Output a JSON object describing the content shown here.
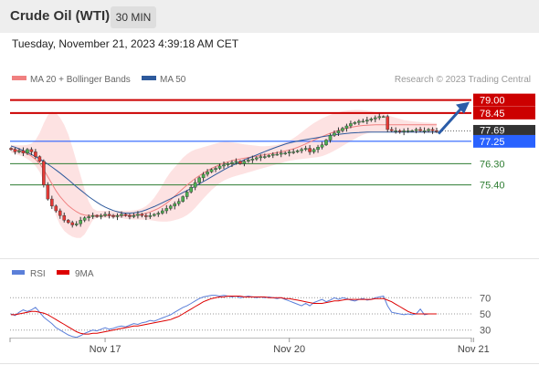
{
  "header": {
    "title": "Crude Oil (WTI)",
    "timeframe": "30 MIN"
  },
  "timestamp": "Tuesday, November 21, 2023 4:39:18 AM CET",
  "legend": {
    "bb_label": "MA 20 + Bollinger Bands",
    "ma50_label": "MA 50",
    "credit": "Research © 2023 Trading Central"
  },
  "rsi_legend": {
    "rsi_label": "RSI",
    "ma9_label": "9MA"
  },
  "x_ticks": [
    "Nov 17",
    "Nov 20",
    "Nov 21"
  ],
  "colors": {
    "bb": "#f08080",
    "band_fill": "#fde2e2",
    "ma50": "#2e5a9c",
    "resistance": "#cc0000",
    "pivot": "#2962ff",
    "support": "#2e7d32",
    "current": "#333333",
    "rsi": "#5b7fd9",
    "rsi_ma": "#dd0000",
    "arrow": "#2a5ca8",
    "bull": "#4caf50",
    "bear": "#e53935",
    "wick": "#333333"
  },
  "chart_data": [
    {
      "type": "candlestick",
      "title": "Crude Oil (WTI) 30 MIN",
      "ylim": [
        73.1,
        79.45
      ],
      "x_ticks": [
        {
          "label": "Nov 17",
          "index": 23
        },
        {
          "label": "Nov 20",
          "index": 68
        },
        {
          "label": "Nov 21",
          "index": 113
        }
      ],
      "levels": [
        {
          "label": "79.00",
          "value": 79.0,
          "kind": "resistance"
        },
        {
          "label": "78.45",
          "value": 78.45,
          "kind": "resistance"
        },
        {
          "label": "77.25",
          "value": 77.25,
          "kind": "pivot"
        },
        {
          "label": "76.30",
          "value": 76.3,
          "kind": "support"
        },
        {
          "label": "75.40",
          "value": 75.4,
          "kind": "support"
        }
      ],
      "current_price": {
        "label": "77.69",
        "value": 77.69
      },
      "close": [
        76.9,
        76.8,
        76.85,
        76.75,
        76.9,
        76.8,
        76.6,
        76.4,
        75.4,
        74.8,
        74.5,
        74.3,
        74.1,
        73.9,
        73.8,
        73.7,
        73.75,
        73.9,
        74.0,
        74.05,
        74.1,
        74.05,
        74.1,
        74.15,
        74.1,
        74.05,
        74.1,
        74.15,
        74.1,
        74.05,
        74.1,
        74.15,
        74.1,
        74.05,
        74.1,
        74.15,
        74.2,
        74.3,
        74.4,
        74.5,
        74.6,
        74.7,
        74.9,
        75.1,
        75.3,
        75.5,
        75.7,
        75.85,
        75.95,
        76.05,
        76.1,
        76.2,
        76.25,
        76.3,
        76.35,
        76.4,
        76.3,
        76.4,
        76.45,
        76.5,
        76.55,
        76.6,
        76.6,
        76.65,
        76.7,
        76.7,
        76.75,
        76.75,
        76.8,
        76.8,
        76.85,
        76.9,
        76.95,
        76.8,
        76.9,
        77.0,
        77.1,
        77.3,
        77.5,
        77.6,
        77.7,
        77.8,
        77.9,
        78.0,
        78.05,
        78.1,
        78.1,
        78.15,
        78.2,
        78.25,
        78.3,
        78.3,
        77.75,
        77.7,
        77.7,
        77.65,
        77.7,
        77.7,
        77.7,
        77.75,
        77.7,
        77.7,
        77.75,
        77.7,
        77.69
      ],
      "ma50_y": [
        77.05,
        77.0,
        76.93,
        76.86,
        76.78,
        76.69,
        76.6,
        76.5,
        76.4,
        76.28,
        76.16,
        76.03,
        75.9,
        75.76,
        75.62,
        75.47,
        75.32,
        75.18,
        75.04,
        74.9,
        74.78,
        74.66,
        74.55,
        74.46,
        74.38,
        74.31,
        74.26,
        74.22,
        74.2,
        74.2,
        74.21,
        74.24,
        74.28,
        74.34,
        74.41,
        74.48,
        74.56,
        74.64,
        74.73,
        74.81,
        74.9,
        74.98,
        75.07,
        75.16,
        75.25,
        75.34,
        75.44,
        75.54,
        75.64,
        75.74,
        75.84,
        75.94,
        76.04,
        76.13,
        76.22,
        76.3,
        76.38,
        76.46,
        76.53,
        76.6,
        76.67,
        76.74,
        76.81,
        76.88,
        76.95,
        77.01,
        77.07,
        77.13,
        77.18,
        77.22,
        77.26,
        77.29,
        77.32,
        77.35,
        77.38,
        77.41,
        77.44,
        77.47,
        77.5,
        77.52,
        77.54,
        77.56,
        77.58,
        77.6,
        77.61,
        77.62,
        77.63,
        77.64,
        77.64,
        77.64,
        77.64,
        77.64,
        77.64,
        77.64,
        77.64,
        77.64,
        77.64,
        77.64,
        77.64,
        77.64,
        77.64,
        77.64,
        77.64,
        77.64,
        77.64
      ],
      "bb_mid": [
        76.95,
        76.9,
        76.85,
        76.8,
        76.72,
        76.62,
        76.48,
        76.3,
        76.05,
        75.75,
        75.45,
        75.15,
        74.9,
        74.7,
        74.52,
        74.38,
        74.26,
        74.17,
        74.12,
        74.1,
        74.1,
        74.11,
        74.1,
        74.1,
        74.1,
        74.1,
        74.1,
        74.1,
        74.1,
        74.11,
        74.12,
        74.14,
        74.16,
        74.2,
        74.25,
        74.32,
        74.4,
        74.5,
        74.62,
        74.76,
        74.92,
        75.08,
        75.24,
        75.39,
        75.53,
        75.67,
        75.79,
        75.9,
        76.0,
        76.1,
        76.18,
        76.26,
        76.32,
        76.38,
        76.43,
        76.47,
        76.5,
        76.53,
        76.56,
        76.59,
        76.62,
        76.65,
        76.68,
        76.71,
        76.74,
        76.77,
        76.8,
        76.84,
        76.88,
        76.93,
        76.99,
        77.06,
        77.14,
        77.22,
        77.3,
        77.38,
        77.45,
        77.52,
        77.59,
        77.65,
        77.71,
        77.76,
        77.8,
        77.84,
        77.87,
        77.9,
        77.92,
        77.93,
        77.94,
        77.95,
        77.95,
        77.95,
        77.95,
        77.95,
        77.95,
        77.95,
        77.95,
        77.95,
        77.95,
        77.95,
        77.95,
        77.95,
        77.95,
        77.95,
        77.95
      ],
      "bb_upper": [
        77.1,
        77.08,
        77.08,
        77.08,
        77.1,
        77.15,
        77.3,
        77.6,
        78.0,
        78.35,
        78.5,
        78.45,
        78.25,
        77.95,
        77.55,
        77.0,
        76.4,
        75.8,
        75.2,
        74.7,
        74.4,
        74.3,
        74.3,
        74.3,
        74.3,
        74.3,
        74.3,
        74.3,
        74.3,
        74.3,
        74.32,
        74.35,
        74.4,
        74.5,
        74.65,
        74.85,
        75.1,
        75.4,
        75.7,
        75.95,
        76.15,
        76.35,
        76.55,
        76.7,
        76.82,
        76.9,
        76.95,
        77.0,
        77.05,
        77.1,
        77.15,
        77.2,
        77.22,
        77.22,
        77.2,
        77.18,
        77.15,
        77.12,
        77.1,
        77.08,
        77.06,
        77.04,
        77.04,
        77.05,
        77.07,
        77.1,
        77.15,
        77.2,
        77.28,
        77.38,
        77.5,
        77.63,
        77.77,
        77.9,
        78.02,
        78.12,
        78.22,
        78.3,
        78.37,
        78.43,
        78.48,
        78.52,
        78.55,
        78.57,
        78.58,
        78.58,
        78.57,
        78.55,
        78.52,
        78.49,
        78.45,
        78.41,
        78.36,
        78.3,
        78.25,
        78.2,
        78.15,
        78.12,
        78.1,
        78.08,
        78.06,
        78.05,
        78.04,
        78.03,
        78.02
      ],
      "bb_lower": [
        76.78,
        76.72,
        76.66,
        76.6,
        76.5,
        76.38,
        76.2,
        75.95,
        75.55,
        75.05,
        74.55,
        74.1,
        73.7,
        73.45,
        73.3,
        73.2,
        73.15,
        73.15,
        73.3,
        73.6,
        73.9,
        74.0,
        74.0,
        74.0,
        74.0,
        74.0,
        74.0,
        74.0,
        73.95,
        73.95,
        73.93,
        73.93,
        73.93,
        73.92,
        73.9,
        73.88,
        73.85,
        73.84,
        73.84,
        73.86,
        73.9,
        73.95,
        74.02,
        74.12,
        74.25,
        74.42,
        74.62,
        74.82,
        75.0,
        75.18,
        75.33,
        75.47,
        75.58,
        75.66,
        75.73,
        75.78,
        75.83,
        75.88,
        75.93,
        75.98,
        76.03,
        76.08,
        76.13,
        76.18,
        76.23,
        76.28,
        76.33,
        76.38,
        76.42,
        76.45,
        76.48,
        76.5,
        76.52,
        76.54,
        76.56,
        76.58,
        76.62,
        76.68,
        76.76,
        76.85,
        76.95,
        77.05,
        77.15,
        77.25,
        77.35,
        77.45,
        77.52,
        77.58,
        77.62,
        77.64,
        77.65,
        77.65,
        77.64,
        77.63,
        77.62,
        77.62,
        77.62,
        77.62,
        77.62,
        77.62,
        77.62,
        77.62,
        77.62,
        77.62,
        77.62
      ]
    },
    {
      "type": "line",
      "title": "RSI",
      "ylim": [
        15,
        85
      ],
      "y_ticks": [
        70,
        50,
        30
      ],
      "series": [
        {
          "name": "RSI",
          "values": [
            50,
            48,
            52,
            55,
            53,
            55,
            58,
            52,
            46,
            42,
            38,
            33,
            30,
            27,
            24,
            22,
            21,
            23,
            26,
            28,
            30,
            29,
            31,
            33,
            31,
            32,
            34,
            35,
            34,
            36,
            38,
            37,
            39,
            40,
            42,
            41,
            43,
            45,
            47,
            49,
            52,
            55,
            58,
            60,
            63,
            66,
            69,
            71,
            72,
            73,
            73,
            72,
            73,
            72,
            71,
            72,
            70,
            71,
            72,
            71,
            70,
            71,
            70,
            71,
            70,
            69,
            70,
            68,
            66,
            64,
            62,
            60,
            63,
            60,
            64,
            66,
            68,
            65,
            67,
            70,
            68,
            70,
            69,
            67,
            66,
            68,
            69,
            67,
            68,
            70,
            71,
            72,
            60,
            52,
            51,
            50,
            49,
            50,
            49,
            50,
            56,
            49,
            50,
            50,
            50
          ]
        },
        {
          "name": "9MA",
          "values": [
            49,
            49,
            50,
            51,
            52,
            53,
            53,
            52,
            51,
            49,
            46,
            43,
            40,
            37,
            34,
            31,
            28,
            26,
            25,
            25,
            26,
            26,
            27,
            28,
            29,
            30,
            31,
            32,
            33,
            34,
            35,
            35,
            36,
            37,
            38,
            39,
            40,
            41,
            42,
            43,
            45,
            47,
            50,
            53,
            56,
            59,
            62,
            65,
            67,
            69,
            70,
            71,
            71,
            72,
            72,
            72,
            72,
            71,
            71,
            71,
            71,
            71,
            71,
            70,
            70,
            70,
            70,
            69,
            69,
            68,
            67,
            66,
            65,
            64,
            63,
            63,
            63,
            64,
            65,
            66,
            66,
            67,
            68,
            68,
            68,
            68,
            68,
            68,
            68,
            69,
            69,
            69,
            67,
            65,
            62,
            59,
            56,
            53,
            51,
            50,
            50,
            50,
            50,
            50,
            50
          ]
        }
      ]
    }
  ]
}
